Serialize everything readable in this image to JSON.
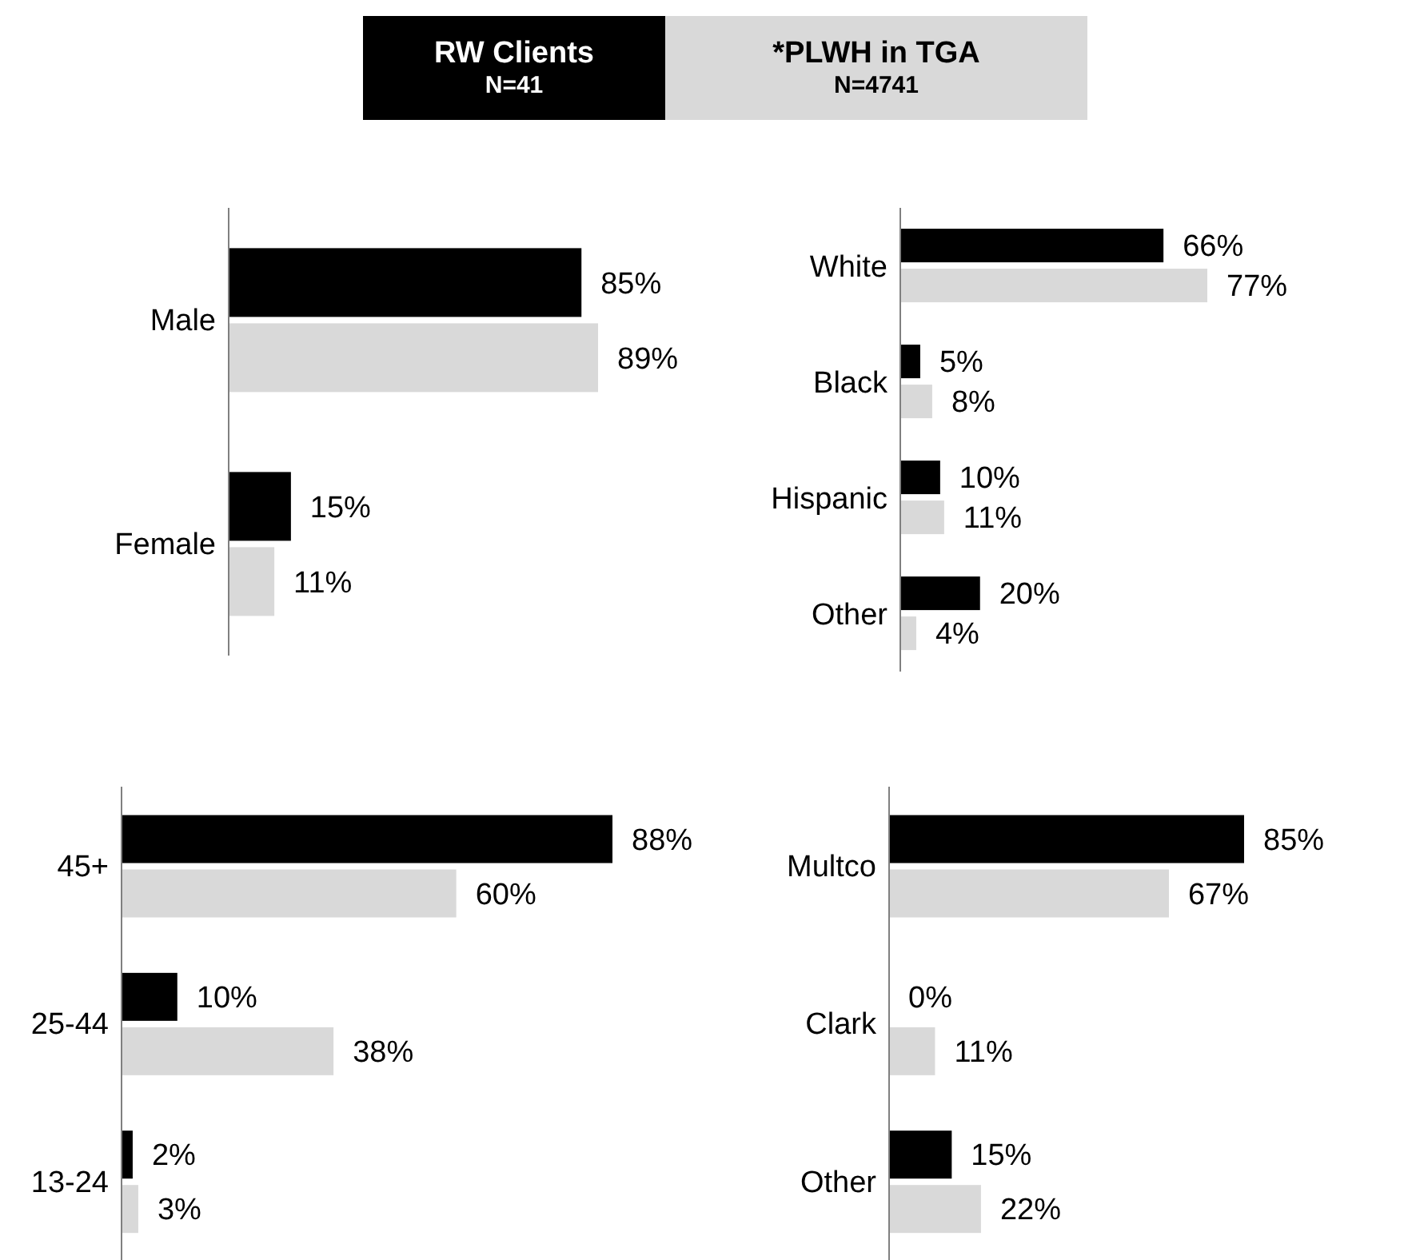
{
  "chart_data": [
    {
      "type": "bar",
      "orientation": "horizontal",
      "legend": "top",
      "categories": [
        "Male",
        "Female"
      ],
      "series": [
        {
          "name": "RW Clients\nN=41",
          "color": "#000000",
          "values": [
            85,
            15
          ],
          "value_labels": [
            "85%",
            "15%"
          ]
        },
        {
          "name": "*PLWH in TGA\nN=4741",
          "color": "#d9d9d9",
          "values": [
            89,
            11
          ],
          "value_labels": [
            "89%",
            "11%"
          ]
        }
      ]
    },
    {
      "type": "bar",
      "orientation": "horizontal",
      "categories": [
        "White",
        "Black",
        "Hispanic",
        "Other"
      ],
      "series": [
        {
          "color": "#000000",
          "values": [
            66,
            5,
            10,
            20
          ],
          "value_labels": [
            "66%",
            "5%",
            "10%",
            "20%"
          ]
        },
        {
          "color": "#d9d9d9",
          "values": [
            77,
            8,
            11,
            4
          ],
          "value_labels": [
            "77%",
            "8%",
            "11%",
            "4%"
          ]
        }
      ]
    },
    {
      "type": "bar",
      "orientation": "horizontal",
      "categories": [
        "45+",
        "25-44",
        "13-24"
      ],
      "series": [
        {
          "color": "#000000",
          "values": [
            88,
            10,
            2
          ],
          "value_labels": [
            "88%",
            "10%",
            "2%"
          ]
        },
        {
          "color": "#d9d9d9",
          "values": [
            60,
            38,
            3
          ],
          "value_labels": [
            "60%",
            "38%",
            "3%"
          ]
        }
      ]
    },
    {
      "type": "bar",
      "orientation": "horizontal",
      "categories": [
        "Multco",
        "Clark",
        "Other"
      ],
      "series": [
        {
          "color": "#000000",
          "values": [
            85,
            0,
            15
          ],
          "value_labels": [
            "85%",
            "0%",
            "15%"
          ]
        },
        {
          "color": "#d9d9d9",
          "values": [
            67,
            11,
            22
          ],
          "value_labels": [
            "67%",
            "11%",
            "22%"
          ]
        }
      ]
    }
  ]
}
